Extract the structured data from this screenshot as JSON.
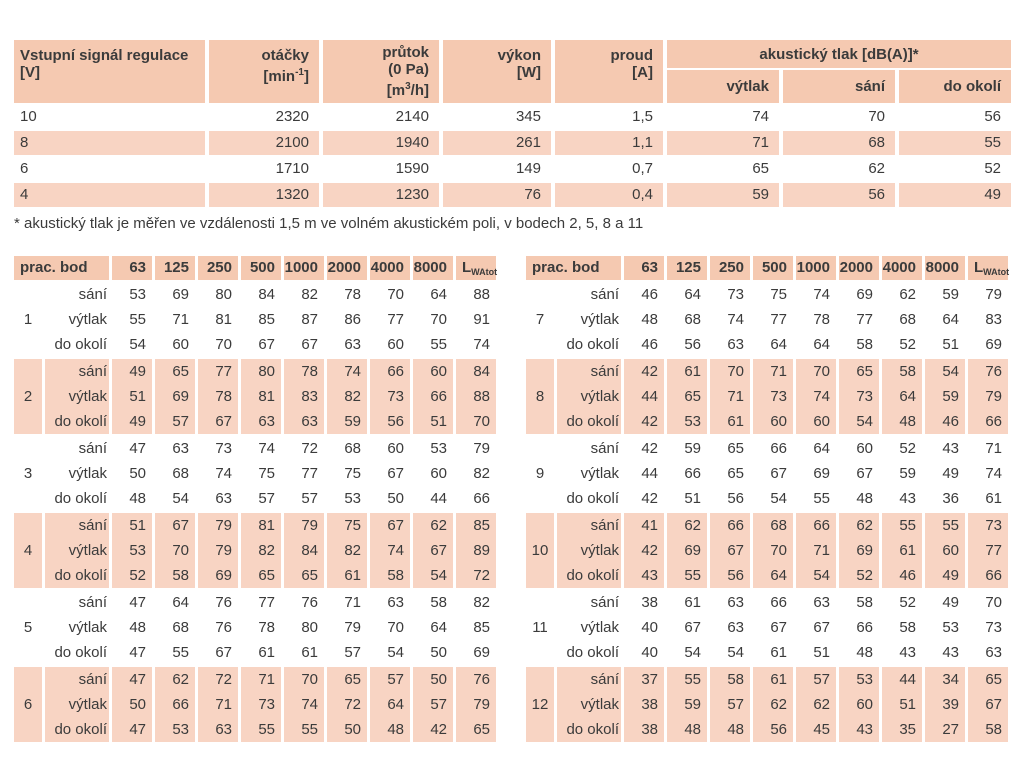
{
  "top_table": {
    "header": {
      "signal": {
        "line1": "Vstupní signál regulace",
        "line2": "[V]"
      },
      "speed": {
        "line1": "otáčky",
        "unit_pre": "[min",
        "unit_sup": "-1",
        "unit_post": "]"
      },
      "flow": {
        "line1": "průtok",
        "line2": "(0 Pa)",
        "unit_pre": "[m",
        "unit_sup": "3",
        "unit_post": "/h]"
      },
      "power": {
        "line1": "výkon",
        "line2": "[W]"
      },
      "current": {
        "line1": "proud",
        "line2": "[A]"
      },
      "acoustic": {
        "title": "akustický tlak [dB(A)]*",
        "sub": [
          "výtlak",
          "sání",
          "do okolí"
        ]
      }
    },
    "rows": [
      [
        "10",
        "2320",
        "2140",
        "345",
        "1,5",
        "74",
        "70",
        "56"
      ],
      [
        "8",
        "2100",
        "1940",
        "261",
        "1,1",
        "71",
        "68",
        "55"
      ],
      [
        "6",
        "1710",
        "1590",
        "149",
        "0,7",
        "65",
        "62",
        "52"
      ],
      [
        "4",
        "1320",
        "1230",
        "76",
        "0,4",
        "59",
        "56",
        "49"
      ]
    ]
  },
  "footnote": "* akustický tlak je měřen ve vzdálenosti 1,5 m ve volném akustickém poli, v bodech 2, 5, 8 a 11",
  "noise_tables": {
    "header": {
      "label": "prac. bod",
      "freqs": [
        "63",
        "125",
        "250",
        "500",
        "1000",
        "2000",
        "4000",
        "8000"
      ],
      "total_main": "L",
      "total_sub": "WAtot"
    },
    "row_labels": [
      "sání",
      "výtlak",
      "do okolí"
    ],
    "left_groups": [
      {
        "point": "1",
        "shaded": false,
        "rows": [
          [
            53,
            69,
            80,
            84,
            82,
            78,
            70,
            64,
            88
          ],
          [
            55,
            71,
            81,
            85,
            87,
            86,
            77,
            70,
            91
          ],
          [
            54,
            60,
            70,
            67,
            67,
            63,
            60,
            55,
            74
          ]
        ]
      },
      {
        "point": "2",
        "shaded": true,
        "rows": [
          [
            49,
            65,
            77,
            80,
            78,
            74,
            66,
            60,
            84
          ],
          [
            51,
            69,
            78,
            81,
            83,
            82,
            73,
            66,
            88
          ],
          [
            49,
            57,
            67,
            63,
            63,
            59,
            56,
            51,
            70
          ]
        ]
      },
      {
        "point": "3",
        "shaded": false,
        "rows": [
          [
            47,
            63,
            73,
            74,
            72,
            68,
            60,
            53,
            79
          ],
          [
            50,
            68,
            74,
            75,
            77,
            75,
            67,
            60,
            82
          ],
          [
            48,
            54,
            63,
            57,
            57,
            53,
            50,
            44,
            66
          ]
        ]
      },
      {
        "point": "4",
        "shaded": true,
        "rows": [
          [
            51,
            67,
            79,
            81,
            79,
            75,
            67,
            62,
            85
          ],
          [
            53,
            70,
            79,
            82,
            84,
            82,
            74,
            67,
            89
          ],
          [
            52,
            58,
            69,
            65,
            65,
            61,
            58,
            54,
            72
          ]
        ]
      },
      {
        "point": "5",
        "shaded": false,
        "rows": [
          [
            47,
            64,
            76,
            77,
            76,
            71,
            63,
            58,
            82
          ],
          [
            48,
            68,
            76,
            78,
            80,
            79,
            70,
            64,
            85
          ],
          [
            47,
            55,
            67,
            61,
            61,
            57,
            54,
            50,
            69
          ]
        ]
      },
      {
        "point": "6",
        "shaded": true,
        "rows": [
          [
            47,
            62,
            72,
            71,
            70,
            65,
            57,
            50,
            76
          ],
          [
            50,
            66,
            71,
            73,
            74,
            72,
            64,
            57,
            79
          ],
          [
            47,
            53,
            63,
            55,
            55,
            50,
            48,
            42,
            65
          ]
        ]
      }
    ],
    "right_groups": [
      {
        "point": "7",
        "shaded": false,
        "rows": [
          [
            46,
            64,
            73,
            75,
            74,
            69,
            62,
            59,
            79
          ],
          [
            48,
            68,
            74,
            77,
            78,
            77,
            68,
            64,
            83
          ],
          [
            46,
            56,
            63,
            64,
            64,
            58,
            52,
            51,
            69
          ]
        ]
      },
      {
        "point": "8",
        "shaded": true,
        "rows": [
          [
            42,
            61,
            70,
            71,
            70,
            65,
            58,
            54,
            76
          ],
          [
            44,
            65,
            71,
            73,
            74,
            73,
            64,
            59,
            79
          ],
          [
            42,
            53,
            61,
            60,
            60,
            54,
            48,
            46,
            66
          ]
        ]
      },
      {
        "point": "9",
        "shaded": false,
        "rows": [
          [
            42,
            59,
            65,
            66,
            64,
            60,
            52,
            43,
            71
          ],
          [
            44,
            66,
            65,
            67,
            69,
            67,
            59,
            49,
            74
          ],
          [
            42,
            51,
            56,
            54,
            55,
            48,
            43,
            36,
            61
          ]
        ]
      },
      {
        "point": "10",
        "shaded": true,
        "rows": [
          [
            41,
            62,
            66,
            68,
            66,
            62,
            55,
            55,
            73
          ],
          [
            42,
            69,
            67,
            70,
            71,
            69,
            61,
            60,
            77
          ],
          [
            43,
            55,
            56,
            64,
            54,
            52,
            46,
            49,
            66
          ]
        ]
      },
      {
        "point": "11",
        "shaded": false,
        "rows": [
          [
            38,
            61,
            63,
            66,
            63,
            58,
            52,
            49,
            70
          ],
          [
            40,
            67,
            63,
            67,
            67,
            66,
            58,
            53,
            73
          ],
          [
            40,
            54,
            54,
            61,
            51,
            48,
            43,
            43,
            63
          ]
        ]
      },
      {
        "point": "12",
        "shaded": true,
        "rows": [
          [
            37,
            55,
            58,
            61,
            57,
            53,
            44,
            34,
            65
          ],
          [
            38,
            59,
            57,
            62,
            62,
            60,
            51,
            39,
            67
          ],
          [
            38,
            48,
            48,
            56,
            45,
            43,
            35,
            27,
            58
          ]
        ]
      }
    ]
  },
  "colors": {
    "header_bg": "#f5c9b1",
    "stripe_bg": "#f8d4c3",
    "text": "#3b3b3b"
  }
}
